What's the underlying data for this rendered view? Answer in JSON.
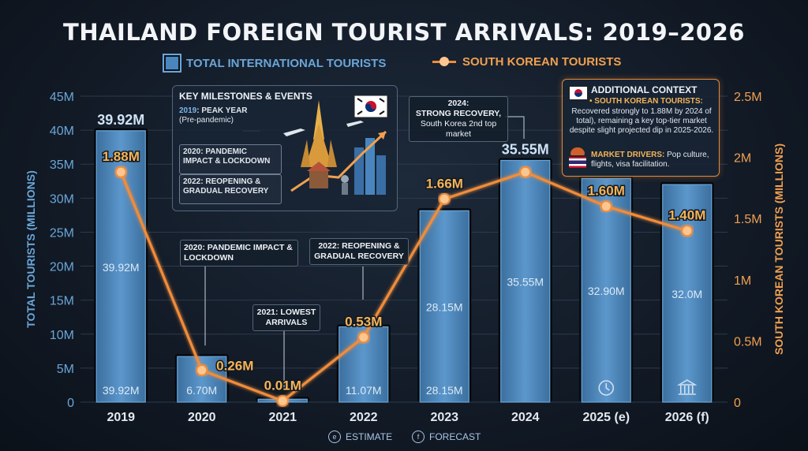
{
  "chart_data": {
    "type": "bar",
    "title": "THAILAND FOREIGN TOURIST ARRIVALS: 2019–2026",
    "categories": [
      "2019",
      "2020",
      "2021",
      "2022",
      "2023",
      "2024",
      "2025 (e)",
      "2026 (f)"
    ],
    "series": [
      {
        "name": "TOTAL INTERNATIONAL TOURISTS",
        "type": "bar",
        "axis": "left",
        "values": [
          39.92,
          6.7,
          0.43,
          11.07,
          28.15,
          35.55,
          32.9,
          32.0
        ],
        "top_labels": [
          "39.92M",
          "",
          "",
          "",
          "",
          "35.55M",
          "",
          ""
        ],
        "mid_labels": [
          "39.92M",
          "",
          "",
          "",
          "28.15M",
          "35.55M",
          "32.90M",
          "32.0M"
        ],
        "base_labels": [
          "39.92M",
          "6.70M",
          "",
          "11.07M",
          "28.15M",
          "",
          "",
          ""
        ]
      },
      {
        "name": "SOUTH KOREAN TOURISTS",
        "type": "line",
        "axis": "right",
        "values": [
          1.88,
          0.26,
          0.01,
          0.53,
          1.66,
          1.88,
          1.6,
          1.4
        ],
        "labels": [
          "1.88M",
          "0.26M",
          "0.01M",
          "0.53M",
          "1.66M",
          "",
          "1.60M",
          "1.40M"
        ]
      }
    ],
    "ylabel": "TOTAL TOURISTS (MILLIONS)",
    "y2label": "SOUTH KOREAN TOURISTS (MILLIONS)",
    "ylim": [
      0,
      45
    ],
    "y2lim": [
      0,
      2.5
    ],
    "yticks": [
      "0",
      "5M",
      "10M",
      "15M",
      "20M",
      "25M",
      "30M",
      "35M",
      "40M",
      "45M"
    ],
    "y2ticks": [
      "0",
      "0.5M",
      "1M",
      "1.5M",
      "2M",
      "2.5M"
    ],
    "legend": "top-center",
    "grid": true
  },
  "milestones": {
    "title": "KEY MILESTONES & EVENTS",
    "item1_year": "2019",
    "item1_label": ": PEAK YEAR",
    "item1_sub": "(Pre-pandemic)",
    "item2": "2020: PANDEMIC IMPACT & LOCKDOWN",
    "item3": "2022: REOPENING & GRADUAL RECOVERY"
  },
  "context": {
    "title": "ADDITIONAL CONTEXT",
    "korea_label": "• SOUTH KOREAN TOURISTS:",
    "korea_text": "Recovered strongly to 1.88M by 2024 of total), remaining a key top-tier market despite slight projected dip in 2025-2026.",
    "drivers_label": "MARKET DRIVERS:",
    "drivers_text": "Pop culture, flights, visa facilitation."
  },
  "annotations": {
    "a2020": "2020: PANDEMIC IMPACT & LOCKDOWN",
    "a2021": "2021: LOWEST ARRIVALS",
    "a2022": "2022: REOPENING & GRADUAL RECOVERY",
    "a2024_year": "2024:",
    "a2024_title": "STRONG RECOVERY,",
    "a2024_text": "South Korea 2nd top market"
  },
  "footer": {
    "estimate_mark": "e",
    "estimate": "ESTIMATE",
    "forecast_mark": "f",
    "forecast": "FORECAST"
  },
  "colors": {
    "bar": "#4a86bd",
    "bar_edge": "#6aa6d8",
    "line": "#f08c3a",
    "label_orange": "#f5b45a",
    "axis_left": "#6aa6d8",
    "axis_right": "#f0a050"
  }
}
